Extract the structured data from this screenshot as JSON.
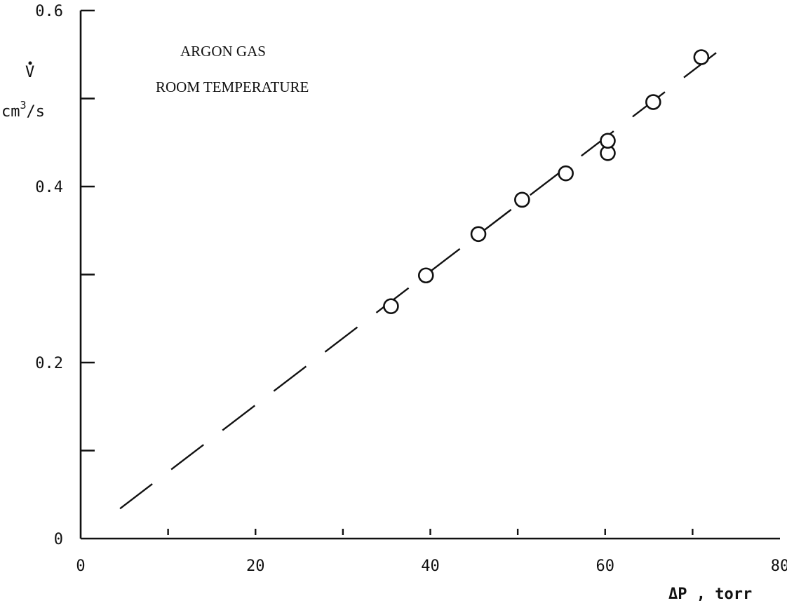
{
  "chart_data": {
    "type": "scatter",
    "annotations": [
      "ARGON GAS",
      "ROOM TEMPERATURE"
    ],
    "ylabel_symbol": "V",
    "ylabel_units": "cm3/s",
    "xlabel": "ΔP , torr",
    "xlim": [
      0,
      80
    ],
    "ylim": [
      0,
      0.6
    ],
    "x_ticks": [
      0,
      20,
      40,
      60,
      80
    ],
    "y_ticks": [
      0,
      0.2,
      0.4,
      0.6
    ],
    "x_minor_ticks": [
      10,
      20,
      30,
      40,
      50,
      60,
      70
    ],
    "y_minor_ticks": [
      0.1,
      0.2,
      0.3,
      0.4,
      0.5,
      0.6
    ],
    "grid": false,
    "series": [
      {
        "points": [
          {
            "x": 35.5,
            "y": 0.264
          },
          {
            "x": 39.5,
            "y": 0.299
          },
          {
            "x": 45.5,
            "y": 0.346
          },
          {
            "x": 50.5,
            "y": 0.385
          },
          {
            "x": 55.5,
            "y": 0.415
          },
          {
            "x": 60.3,
            "y": 0.438
          },
          {
            "x": 60.3,
            "y": 0.452
          },
          {
            "x": 65.5,
            "y": 0.496
          },
          {
            "x": 71,
            "y": 0.547
          }
        ]
      }
    ],
    "fit_line": {
      "x": [
        4.5,
        73.5
      ],
      "y": [
        0.034,
        0.558
      ],
      "style": "dashed"
    }
  }
}
